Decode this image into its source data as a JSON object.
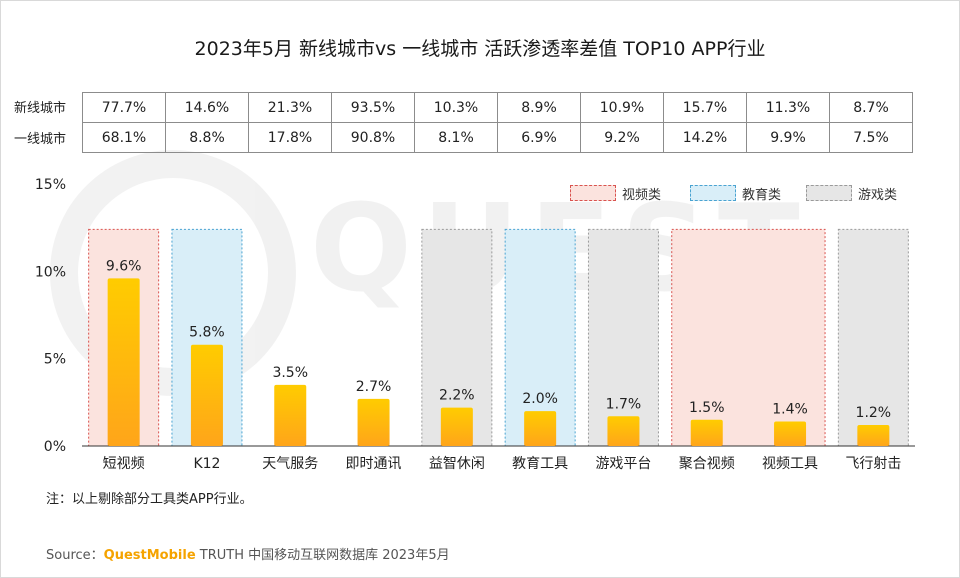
{
  "title": "2023年5月 新线城市vs 一线城市 活跃渗透率差值 TOP10 APP行业",
  "table": {
    "rows": [
      {
        "label": "新线城市",
        "values": [
          "77.7%",
          "14.6%",
          "21.3%",
          "93.5%",
          "10.3%",
          "8.9%",
          "10.9%",
          "15.7%",
          "11.3%",
          "8.7%"
        ]
      },
      {
        "label": "一线城市",
        "values": [
          "68.1%",
          "8.8%",
          "17.8%",
          "90.8%",
          "8.1%",
          "6.9%",
          "9.2%",
          "14.2%",
          "9.9%",
          "7.5%"
        ]
      }
    ]
  },
  "legend": [
    {
      "label": "视频类",
      "fill": "#fbe3de",
      "stroke": "#d9534f"
    },
    {
      "label": "教育类",
      "fill": "#d9eef8",
      "stroke": "#4aa3d1"
    },
    {
      "label": "游戏类",
      "fill": "#e6e6e6",
      "stroke": "#9a9a9a"
    }
  ],
  "chart_data": {
    "type": "bar",
    "title": "活跃渗透率差值",
    "categories": [
      "短视频",
      "K12",
      "天气服务",
      "即时通讯",
      "益智休闲",
      "教育工具",
      "游戏平台",
      "聚合视频",
      "视频工具",
      "飞行射击"
    ],
    "values": [
      9.6,
      5.8,
      3.5,
      2.7,
      2.2,
      2.0,
      1.7,
      1.5,
      1.4,
      1.2
    ],
    "labels": [
      "9.6%",
      "5.8%",
      "3.5%",
      "2.7%",
      "2.2%",
      "2.0%",
      "1.7%",
      "1.5%",
      "1.4%",
      "1.2%"
    ],
    "ylim": [
      0,
      15
    ],
    "yticks": [
      0,
      5,
      10,
      15
    ],
    "ytick_labels": [
      "0%",
      "5%",
      "10%",
      "15%"
    ],
    "category_groups": [
      "视频类",
      "教育类",
      null,
      null,
      "游戏类",
      "教育类",
      "游戏类",
      "视频类",
      "视频类",
      "游戏类"
    ],
    "bar_color": "#ffc000",
    "xlabel": "",
    "ylabel": ""
  },
  "footer": {
    "note": "注：以上剔除部分工具类APP行业。",
    "source_prefix": "Source：",
    "source_brand": "QuestMobile",
    "source_rest": " TRUTH 中国移动互联网数据库 2023年5月"
  }
}
